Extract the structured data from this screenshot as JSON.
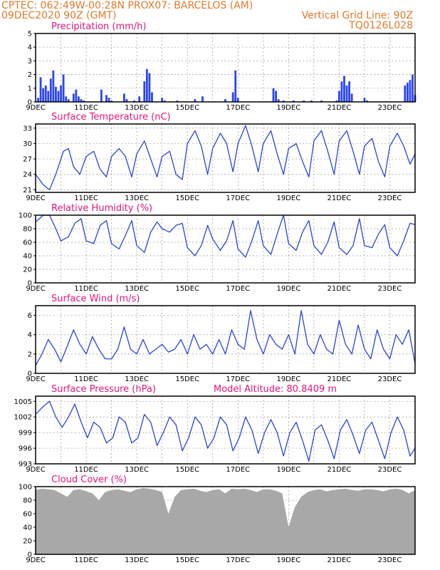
{
  "header": {
    "line1": "CPTEC:   062:49W-00:28N   PROX07: BARCELOS (AM)",
    "line2": "09DEC2020 90Z (GMT)",
    "grid_note": "Vertical Grid Line: 90Z",
    "code": "TQ0126L028"
  },
  "colors": {
    "header": "#e07a2a",
    "title": "#e0157a",
    "line": "#2b45d6",
    "bar": "#2b45f0",
    "cloud": "#a8a8a8"
  },
  "x_axis": {
    "labels": [
      "9DEC",
      "11DEC",
      "13DEC",
      "15DEC",
      "17DEC",
      "19DEC",
      "21DEC",
      "23DEC"
    ],
    "start_day": 9,
    "end_day": 24
  },
  "chart_data": [
    {
      "id": "precip",
      "type": "bar",
      "title": "Precipitation (mm/h)",
      "ylim": [
        0,
        5
      ],
      "yticks": [
        "0",
        "1",
        "2",
        "3",
        "4",
        "5"
      ],
      "x": [
        9.1,
        9.2,
        9.3,
        9.4,
        9.5,
        9.6,
        9.7,
        9.8,
        9.9,
        10.0,
        10.1,
        10.2,
        10.3,
        10.5,
        10.6,
        10.7,
        10.8,
        10.9,
        11.6,
        11.8,
        11.9,
        12.0,
        12.5,
        12.6,
        12.9,
        13.1,
        13.3,
        13.4,
        13.5,
        13.6,
        14.0,
        14.1,
        14.6,
        15.3,
        15.6,
        16.5,
        16.8,
        16.9,
        17.0,
        18.4,
        18.5,
        18.6,
        18.8,
        19.2,
        19.6,
        19.9,
        20.3,
        20.9,
        21.0,
        21.1,
        21.2,
        21.3,
        21.4,
        21.5,
        22.0,
        22.1,
        23.6,
        23.7,
        23.8,
        23.9,
        24.0
      ],
      "values": [
        0.3,
        1.8,
        1.0,
        1.2,
        0.8,
        1.7,
        2.3,
        1.1,
        0.8,
        1.2,
        2.0,
        0.4,
        0.2,
        0.6,
        0.9,
        0.4,
        0.2,
        0.1,
        0.9,
        0.5,
        0.3,
        0.1,
        0.6,
        0.2,
        0.1,
        0.4,
        1.5,
        2.4,
        2.1,
        0.7,
        0.3,
        0.1,
        0.1,
        0.2,
        0.4,
        0.2,
        0.7,
        2.3,
        0.3,
        1.0,
        0.8,
        0.2,
        0.1,
        0.1,
        0.1,
        0.1,
        0.1,
        0.1,
        0.8,
        1.5,
        1.9,
        1.2,
        1.5,
        0.6,
        0.3,
        0.1,
        1.2,
        1.4,
        1.6,
        2.0,
        0.5
      ]
    },
    {
      "id": "temp",
      "type": "line",
      "title": "Surface Temperature (nC)",
      "ylim": [
        20.5,
        33.8
      ],
      "yticks": [
        "21",
        "24",
        "27",
        "30",
        "33"
      ],
      "x": [
        9.0,
        9.3,
        9.55,
        9.8,
        10.1,
        10.3,
        10.5,
        10.75,
        11.0,
        11.3,
        11.55,
        11.8,
        12.0,
        12.3,
        12.55,
        12.8,
        13.0,
        13.3,
        13.55,
        13.8,
        14.0,
        14.3,
        14.55,
        14.8,
        15.0,
        15.3,
        15.55,
        15.8,
        16.0,
        16.3,
        16.55,
        16.8,
        17.0,
        17.3,
        17.55,
        17.8,
        18.0,
        18.3,
        18.55,
        18.8,
        19.0,
        19.3,
        19.55,
        19.8,
        20.0,
        20.3,
        20.55,
        20.8,
        21.0,
        21.3,
        21.55,
        21.8,
        22.0,
        22.3,
        22.55,
        22.8,
        23.0,
        23.3,
        23.55,
        23.8,
        24.0
      ],
      "y": [
        24.0,
        22.0,
        21.0,
        24.0,
        28.5,
        29.0,
        25.5,
        24.0,
        27.5,
        28.5,
        25.0,
        23.5,
        27.5,
        29.0,
        27.5,
        23.5,
        28.0,
        30.5,
        27.0,
        23.5,
        27.5,
        28.5,
        24.0,
        23.0,
        30.0,
        32.5,
        29.5,
        24.0,
        29.0,
        32.0,
        30.0,
        24.5,
        30.0,
        33.5,
        29.5,
        24.5,
        30.0,
        32.5,
        28.0,
        24.0,
        29.0,
        30.0,
        26.5,
        23.5,
        30.5,
        32.5,
        28.5,
        24.0,
        30.5,
        32.5,
        28.5,
        24.0,
        29.5,
        31.0,
        26.5,
        23.5,
        29.5,
        32.0,
        29.5,
        26.0,
        28.0
      ]
    },
    {
      "id": "rh",
      "type": "line",
      "title": "Relative Humidity (%)",
      "ylim": [
        0,
        100
      ],
      "yticks": [
        "0",
        "20",
        "40",
        "60",
        "80",
        "100"
      ],
      "x": [
        9.0,
        9.3,
        9.55,
        9.8,
        10.0,
        10.3,
        10.55,
        10.8,
        11.0,
        11.3,
        11.55,
        11.8,
        12.0,
        12.3,
        12.55,
        12.8,
        13.0,
        13.3,
        13.55,
        13.8,
        14.0,
        14.3,
        14.55,
        14.8,
        15.0,
        15.3,
        15.55,
        15.8,
        16.0,
        16.3,
        16.55,
        16.8,
        17.0,
        17.3,
        17.55,
        17.8,
        18.0,
        18.3,
        18.55,
        18.8,
        19.0,
        19.3,
        19.55,
        19.8,
        20.0,
        20.3,
        20.55,
        20.8,
        21.0,
        21.3,
        21.55,
        21.8,
        22.0,
        22.3,
        22.55,
        22.8,
        23.0,
        23.3,
        23.55,
        23.8,
        24.0
      ],
      "y": [
        90,
        100,
        100,
        80,
        62,
        68,
        88,
        95,
        62,
        58,
        85,
        92,
        58,
        50,
        70,
        92,
        55,
        45,
        75,
        90,
        80,
        75,
        85,
        88,
        52,
        40,
        55,
        85,
        65,
        48,
        62,
        92,
        50,
        38,
        62,
        92,
        55,
        42,
        72,
        100,
        58,
        48,
        75,
        92,
        55,
        42,
        60,
        90,
        52,
        42,
        55,
        95,
        55,
        52,
        72,
        86,
        52,
        40,
        62,
        88,
        86
      ]
    },
    {
      "id": "wind",
      "type": "line",
      "title": "Surface Wind (m/s)",
      "ylim": [
        0,
        7
      ],
      "yticks": [
        "0",
        "2",
        "4",
        "6"
      ],
      "x": [
        9.0,
        9.25,
        9.5,
        9.75,
        10.0,
        10.25,
        10.5,
        10.75,
        11.0,
        11.25,
        11.5,
        11.75,
        12.0,
        12.25,
        12.5,
        12.75,
        13.0,
        13.25,
        13.5,
        13.75,
        14.0,
        14.25,
        14.5,
        14.75,
        15.0,
        15.25,
        15.5,
        15.75,
        16.0,
        16.25,
        16.5,
        16.75,
        17.0,
        17.25,
        17.5,
        17.75,
        18.0,
        18.25,
        18.5,
        18.75,
        19.0,
        19.25,
        19.5,
        19.75,
        20.0,
        20.25,
        20.5,
        20.75,
        21.0,
        21.25,
        21.5,
        21.75,
        22.0,
        22.25,
        22.5,
        22.75,
        23.0,
        23.25,
        23.5,
        23.75,
        24.0
      ],
      "y": [
        0.8,
        2.0,
        3.5,
        2.5,
        1.2,
        2.8,
        4.5,
        3.0,
        2.0,
        3.8,
        2.5,
        1.5,
        1.5,
        2.5,
        4.8,
        2.5,
        2.0,
        3.5,
        2.0,
        2.5,
        3.0,
        2.2,
        2.5,
        3.5,
        2.0,
        4.0,
        2.5,
        3.0,
        2.0,
        3.5,
        2.0,
        4.5,
        3.0,
        2.5,
        6.5,
        3.5,
        2.0,
        4.0,
        3.0,
        2.5,
        4.0,
        2.0,
        6.5,
        3.0,
        2.0,
        4.0,
        2.5,
        2.0,
        5.5,
        3.0,
        2.0,
        5.0,
        2.5,
        1.5,
        4.5,
        2.5,
        1.5,
        4.0,
        3.0,
        4.5,
        1.0
      ]
    },
    {
      "id": "pres",
      "type": "line",
      "title": "Surface Pressure (hPa)",
      "note": "Model Altitude: 80.8409 m",
      "ylim": [
        993,
        1006
      ],
      "yticks": [
        "993",
        "996",
        "999",
        "1002",
        "1005"
      ],
      "x": [
        9.0,
        9.3,
        9.55,
        9.8,
        10.05,
        10.3,
        10.55,
        10.8,
        11.05,
        11.3,
        11.55,
        11.8,
        12.05,
        12.3,
        12.55,
        12.8,
        13.05,
        13.3,
        13.55,
        13.8,
        14.05,
        14.3,
        14.55,
        14.8,
        15.05,
        15.3,
        15.55,
        15.8,
        16.05,
        16.3,
        16.55,
        16.8,
        17.05,
        17.3,
        17.55,
        17.8,
        18.05,
        18.3,
        18.55,
        18.8,
        19.05,
        19.3,
        19.55,
        19.8,
        20.05,
        20.3,
        20.55,
        20.8,
        21.05,
        21.3,
        21.55,
        21.8,
        22.05,
        22.3,
        22.55,
        22.8,
        23.05,
        23.3,
        23.55,
        23.8,
        24.0
      ],
      "y": [
        1002.5,
        1004.0,
        1005.0,
        1002.0,
        1000.0,
        1002.0,
        1004.5,
        1001.0,
        998.0,
        1001.0,
        1000.0,
        997.0,
        998.0,
        1002.0,
        1001.0,
        997.0,
        998.0,
        1002.5,
        1001.0,
        996.5,
        999.0,
        1002.0,
        1000.5,
        995.5,
        998.0,
        1002.0,
        1000.5,
        996.0,
        998.0,
        1002.0,
        1000.5,
        995.5,
        998.0,
        1002.0,
        999.5,
        995.0,
        999.0,
        1001.5,
        999.0,
        994.5,
        999.0,
        1001.0,
        997.5,
        993.5,
        999.5,
        1000.5,
        997.5,
        994.0,
        999.5,
        1001.5,
        998.5,
        995.0,
        999.5,
        1001.0,
        997.5,
        994.0,
        999.0,
        1002.0,
        999.5,
        994.5,
        996.0
      ]
    },
    {
      "id": "cloud",
      "type": "area",
      "title": "Cloud Cover (%)",
      "ylim": [
        0,
        100
      ],
      "yticks": [
        "0",
        "20",
        "40",
        "60",
        "80",
        "100"
      ],
      "x": [
        9.0,
        9.25,
        9.5,
        9.75,
        10.0,
        10.25,
        10.5,
        10.75,
        11.0,
        11.25,
        11.5,
        11.75,
        12.0,
        12.25,
        12.5,
        12.75,
        13.0,
        13.25,
        13.5,
        13.75,
        14.0,
        14.25,
        14.5,
        14.75,
        15.0,
        15.25,
        15.5,
        15.75,
        16.0,
        16.25,
        16.5,
        16.75,
        17.0,
        17.25,
        17.5,
        17.75,
        18.0,
        18.25,
        18.5,
        18.75,
        19.0,
        19.25,
        19.5,
        19.75,
        20.0,
        20.25,
        20.5,
        20.75,
        21.0,
        21.25,
        21.5,
        21.75,
        22.0,
        22.25,
        22.5,
        22.75,
        23.0,
        23.25,
        23.5,
        23.75,
        24.0
      ],
      "y": [
        95,
        97,
        96,
        95,
        90,
        85,
        95,
        96,
        93,
        90,
        80,
        92,
        95,
        96,
        94,
        92,
        96,
        98,
        97,
        95,
        92,
        60,
        85,
        95,
        96,
        97,
        94,
        92,
        95,
        96,
        90,
        97,
        96,
        97,
        95,
        92,
        96,
        96,
        94,
        90,
        40,
        70,
        85,
        92,
        95,
        96,
        93,
        95,
        96,
        97,
        95,
        94,
        96,
        96,
        95,
        93,
        96,
        97,
        95,
        90,
        95
      ]
    }
  ]
}
